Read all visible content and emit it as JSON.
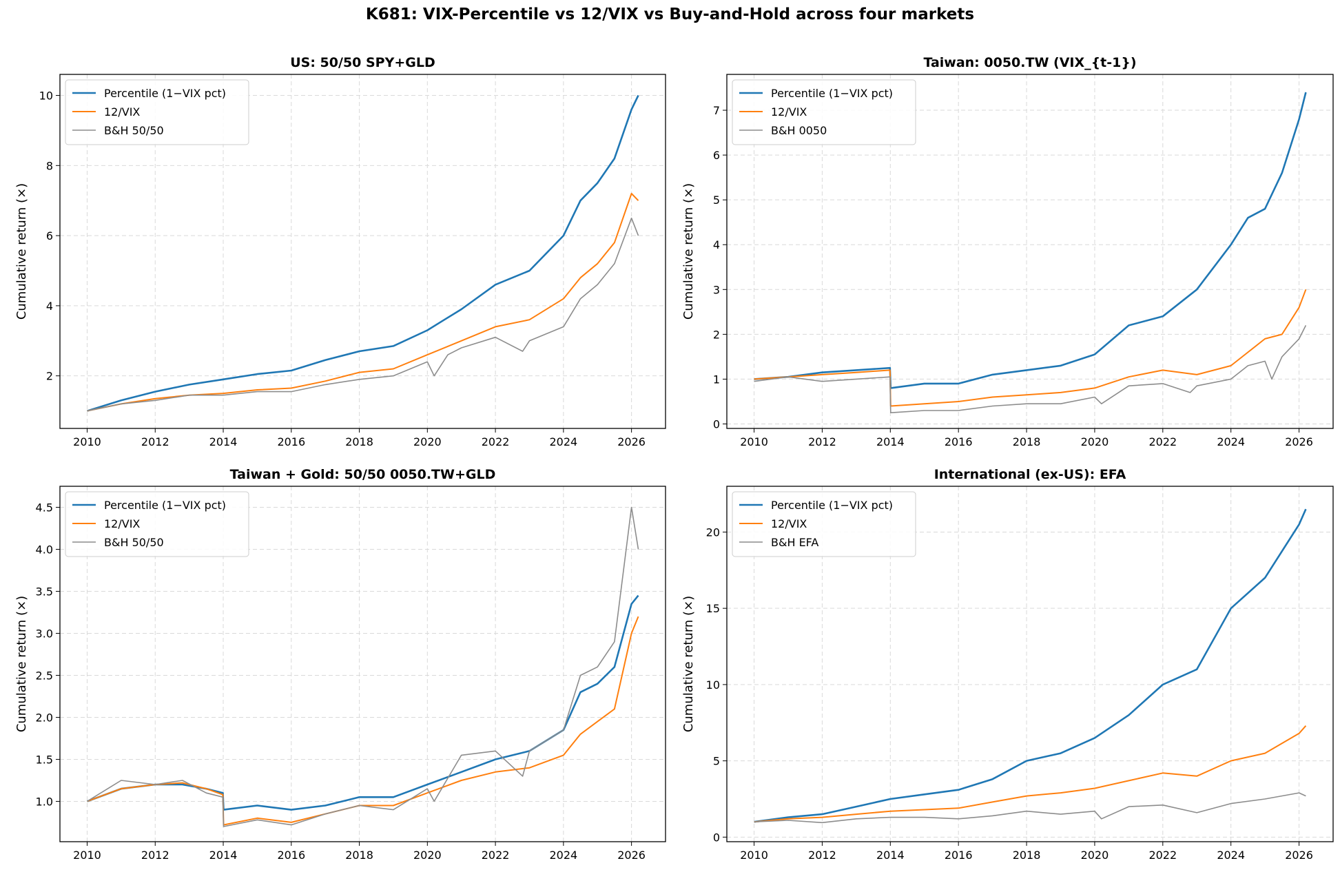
{
  "figure": {
    "title": "K681: VIX-Percentile vs 12/VIX vs Buy-and-Hold across four markets"
  },
  "chart_data": [
    {
      "type": "line",
      "title": "US: 50/50 SPY+GLD",
      "xlabel": "",
      "ylabel": "Cumulative return (×)",
      "xlim": [
        2009.2,
        2027.0
      ],
      "ylim": [
        0.5,
        10.6
      ],
      "xticks": [
        2010,
        2012,
        2014,
        2016,
        2018,
        2020,
        2022,
        2024,
        2026
      ],
      "yticks": [
        2,
        4,
        6,
        8,
        10
      ],
      "ytick_labels": [
        "2",
        "4",
        "6",
        "8",
        "10"
      ],
      "grid": true,
      "legend_position": "upper-left",
      "series": [
        {
          "name": "Percentile (1−VIX pct)",
          "color": "#1f77b4",
          "x": [
            2010,
            2011,
            2012,
            2013,
            2014,
            2015,
            2016,
            2017,
            2018,
            2019,
            2020,
            2020.5,
            2021,
            2022,
            2023,
            2024,
            2024.5,
            2025,
            2025.5,
            2026,
            2026.2
          ],
          "y": [
            1.0,
            1.3,
            1.55,
            1.75,
            1.9,
            2.05,
            2.15,
            2.45,
            2.7,
            2.85,
            3.3,
            3.6,
            3.9,
            4.6,
            5.0,
            6.0,
            7.0,
            7.5,
            8.2,
            9.6,
            10.0
          ]
        },
        {
          "name": "12/VIX",
          "color": "#ff7f0e",
          "x": [
            2010,
            2011,
            2012,
            2013,
            2014,
            2015,
            2016,
            2017,
            2018,
            2019,
            2020,
            2021,
            2022,
            2023,
            2024,
            2024.5,
            2025,
            2025.5,
            2026,
            2026.2
          ],
          "y": [
            1.0,
            1.2,
            1.35,
            1.45,
            1.5,
            1.6,
            1.65,
            1.85,
            2.1,
            2.2,
            2.6,
            3.0,
            3.4,
            3.6,
            4.2,
            4.8,
            5.2,
            5.8,
            7.2,
            7.0
          ]
        },
        {
          "name": "B&H 50/50",
          "color": "#8c8c8c",
          "x": [
            2010,
            2011,
            2012,
            2013,
            2014,
            2015,
            2016,
            2017,
            2018,
            2019,
            2020,
            2020.2,
            2020.6,
            2021,
            2022,
            2022.8,
            2023,
            2024,
            2024.5,
            2025,
            2025.5,
            2026,
            2026.2
          ],
          "y": [
            1.0,
            1.2,
            1.3,
            1.45,
            1.45,
            1.55,
            1.55,
            1.75,
            1.9,
            2.0,
            2.4,
            2.0,
            2.6,
            2.8,
            3.1,
            2.7,
            3.0,
            3.4,
            4.2,
            4.6,
            5.2,
            6.5,
            6.0
          ]
        }
      ]
    },
    {
      "type": "line",
      "title": "Taiwan: 0050.TW (VIX_{t-1})",
      "xlabel": "",
      "ylabel": "Cumulative return (×)",
      "xlim": [
        2009.2,
        2027.0
      ],
      "ylim": [
        -0.1,
        7.8
      ],
      "xticks": [
        2010,
        2012,
        2014,
        2016,
        2018,
        2020,
        2022,
        2024,
        2026
      ],
      "yticks": [
        0,
        1,
        2,
        3,
        4,
        5,
        6,
        7
      ],
      "ytick_labels": [
        "0",
        "1",
        "2",
        "3",
        "4",
        "5",
        "6",
        "7"
      ],
      "grid": true,
      "legend_position": "upper-left",
      "series": [
        {
          "name": "Percentile (1−VIX pct)",
          "color": "#1f77b4",
          "x": [
            2010,
            2011,
            2012,
            2013,
            2013.99,
            2014.01,
            2015,
            2016,
            2017,
            2018,
            2019,
            2020,
            2021,
            2022,
            2023,
            2024,
            2024.5,
            2025,
            2025.5,
            2026,
            2026.2
          ],
          "y": [
            1.0,
            1.05,
            1.15,
            1.2,
            1.25,
            0.8,
            0.9,
            0.9,
            1.1,
            1.2,
            1.3,
            1.55,
            2.2,
            2.4,
            3.0,
            4.0,
            4.6,
            4.8,
            5.6,
            6.8,
            7.4
          ]
        },
        {
          "name": "12/VIX",
          "color": "#ff7f0e",
          "x": [
            2010,
            2011,
            2012,
            2013,
            2013.99,
            2014.01,
            2015,
            2016,
            2017,
            2018,
            2019,
            2020,
            2021,
            2022,
            2023,
            2024,
            2024.5,
            2025,
            2025.5,
            2026,
            2026.2
          ],
          "y": [
            1.0,
            1.05,
            1.1,
            1.15,
            1.2,
            0.4,
            0.45,
            0.5,
            0.6,
            0.65,
            0.7,
            0.8,
            1.05,
            1.2,
            1.1,
            1.3,
            1.6,
            1.9,
            2.0,
            2.6,
            3.0
          ]
        },
        {
          "name": "B&H 0050",
          "color": "#8c8c8c",
          "x": [
            2010,
            2011,
            2012,
            2013,
            2013.99,
            2014.01,
            2015,
            2016,
            2017,
            2018,
            2019,
            2020,
            2020.2,
            2021,
            2022,
            2022.8,
            2023,
            2024,
            2024.5,
            2025,
            2025.2,
            2025.5,
            2026,
            2026.2
          ],
          "y": [
            0.95,
            1.05,
            0.95,
            1.0,
            1.05,
            0.25,
            0.3,
            0.3,
            0.4,
            0.45,
            0.45,
            0.6,
            0.45,
            0.85,
            0.9,
            0.7,
            0.85,
            1.0,
            1.3,
            1.4,
            1.0,
            1.5,
            1.9,
            2.2
          ]
        }
      ]
    },
    {
      "type": "line",
      "title": "Taiwan + Gold: 50/50 0050.TW+GLD",
      "xlabel": "",
      "ylabel": "Cumulative return (×)",
      "xlim": [
        2009.2,
        2027.0
      ],
      "ylim": [
        0.52,
        4.75
      ],
      "xticks": [
        2010,
        2012,
        2014,
        2016,
        2018,
        2020,
        2022,
        2024,
        2026
      ],
      "yticks": [
        1.0,
        1.5,
        2.0,
        2.5,
        3.0,
        3.5,
        4.0,
        4.5
      ],
      "ytick_labels": [
        "1.0",
        "1.5",
        "2.0",
        "2.5",
        "3.0",
        "3.5",
        "4.0",
        "4.5"
      ],
      "grid": true,
      "legend_position": "upper-left",
      "series": [
        {
          "name": "Percentile (1−VIX pct)",
          "color": "#1f77b4",
          "x": [
            2010,
            2011,
            2012,
            2012.8,
            2013.5,
            2013.99,
            2014.01,
            2015,
            2016,
            2017,
            2018,
            2019,
            2020,
            2021,
            2022,
            2023,
            2024,
            2024.5,
            2025,
            2025.5,
            2026,
            2026.2
          ],
          "y": [
            1.0,
            1.15,
            1.2,
            1.2,
            1.15,
            1.1,
            0.9,
            0.95,
            0.9,
            0.95,
            1.05,
            1.05,
            1.2,
            1.35,
            1.5,
            1.6,
            1.85,
            2.3,
            2.4,
            2.6,
            3.35,
            3.45
          ]
        },
        {
          "name": "12/VIX",
          "color": "#ff7f0e",
          "x": [
            2010,
            2011,
            2012,
            2012.8,
            2013.5,
            2013.99,
            2014.01,
            2015,
            2016,
            2017,
            2018,
            2019,
            2020,
            2021,
            2022,
            2023,
            2024,
            2024.5,
            2025,
            2025.5,
            2026,
            2026.2
          ],
          "y": [
            1.0,
            1.15,
            1.2,
            1.22,
            1.15,
            1.08,
            0.72,
            0.8,
            0.75,
            0.85,
            0.95,
            0.95,
            1.1,
            1.25,
            1.35,
            1.4,
            1.55,
            1.8,
            1.95,
            2.1,
            3.0,
            3.2
          ]
        },
        {
          "name": "B&H 50/50",
          "color": "#8c8c8c",
          "x": [
            2010,
            2011,
            2012,
            2012.8,
            2013.5,
            2013.99,
            2014.01,
            2015,
            2016,
            2017,
            2018,
            2019,
            2020,
            2020.2,
            2021,
            2022,
            2022.8,
            2023,
            2024,
            2024.5,
            2025,
            2025.5,
            2026,
            2026.2
          ],
          "y": [
            1.0,
            1.25,
            1.2,
            1.25,
            1.1,
            1.05,
            0.7,
            0.78,
            0.72,
            0.85,
            0.95,
            0.9,
            1.15,
            1.0,
            1.55,
            1.6,
            1.3,
            1.6,
            1.85,
            2.5,
            2.6,
            2.9,
            4.5,
            4.0
          ]
        }
      ]
    },
    {
      "type": "line",
      "title": "International (ex-US): EFA",
      "xlabel": "",
      "ylabel": "Cumulative return (×)",
      "xlim": [
        2009.2,
        2027.0
      ],
      "ylim": [
        -0.3,
        23.0
      ],
      "xticks": [
        2010,
        2012,
        2014,
        2016,
        2018,
        2020,
        2022,
        2024,
        2026
      ],
      "yticks": [
        0,
        5,
        10,
        15,
        20
      ],
      "ytick_labels": [
        "0",
        "5",
        "10",
        "15",
        "20"
      ],
      "grid": true,
      "legend_position": "upper-left",
      "series": [
        {
          "name": "Percentile (1−VIX pct)",
          "color": "#1f77b4",
          "x": [
            2010,
            2011,
            2012,
            2013,
            2014,
            2015,
            2016,
            2017,
            2018,
            2019,
            2020,
            2021,
            2022,
            2023,
            2024,
            2025,
            2026,
            2026.2
          ],
          "y": [
            1.0,
            1.3,
            1.5,
            2.0,
            2.5,
            2.8,
            3.1,
            3.8,
            5.0,
            5.5,
            6.5,
            8.0,
            10.0,
            11.0,
            15.0,
            17.0,
            20.5,
            21.5
          ]
        },
        {
          "name": "12/VIX",
          "color": "#ff7f0e",
          "x": [
            2010,
            2011,
            2012,
            2013,
            2014,
            2015,
            2016,
            2017,
            2018,
            2019,
            2020,
            2021,
            2022,
            2023,
            2024,
            2025,
            2026,
            2026.2
          ],
          "y": [
            1.0,
            1.2,
            1.3,
            1.5,
            1.7,
            1.8,
            1.9,
            2.3,
            2.7,
            2.9,
            3.2,
            3.7,
            4.2,
            4.0,
            5.0,
            5.5,
            6.8,
            7.3
          ]
        },
        {
          "name": "B&H EFA",
          "color": "#8c8c8c",
          "x": [
            2010,
            2011,
            2012,
            2013,
            2014,
            2015,
            2016,
            2017,
            2018,
            2019,
            2020,
            2020.2,
            2021,
            2022,
            2023,
            2024,
            2025,
            2026,
            2026.2
          ],
          "y": [
            1.0,
            1.1,
            0.95,
            1.2,
            1.3,
            1.3,
            1.2,
            1.4,
            1.7,
            1.5,
            1.7,
            1.2,
            2.0,
            2.1,
            1.6,
            2.2,
            2.5,
            2.9,
            2.7
          ]
        }
      ]
    }
  ]
}
